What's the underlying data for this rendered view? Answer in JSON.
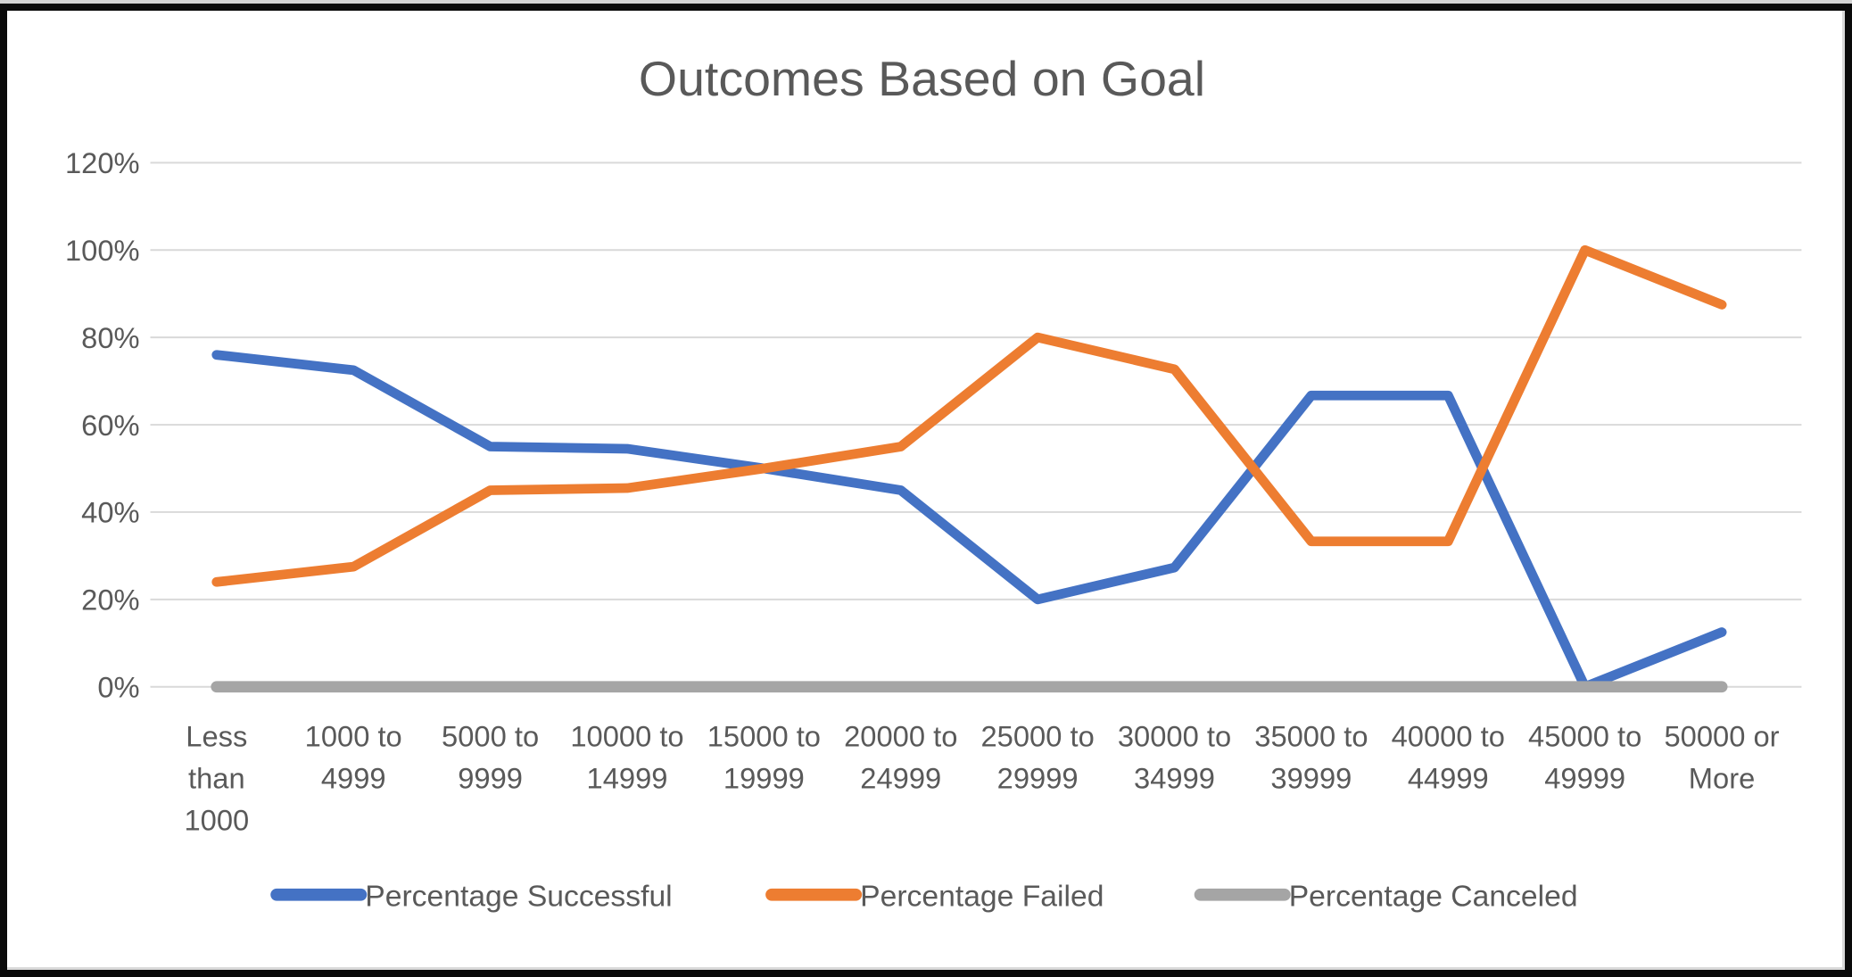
{
  "chart_data": {
    "type": "line",
    "title": "Outcomes Based on Goal",
    "categories": [
      "Less than 1000",
      "1000 to 4999",
      "5000 to 9999",
      "10000 to 14999",
      "15000 to 19999",
      "20000 to 24999",
      "25000 to 29999",
      "30000 to 34999",
      "35000 to 39999",
      "40000 to 44999",
      "45000 to 49999",
      "50000 or More"
    ],
    "category_label_lines": [
      [
        "Less",
        "than",
        "1000"
      ],
      [
        "1000 to",
        "4999"
      ],
      [
        "5000 to",
        "9999"
      ],
      [
        "10000 to",
        "14999"
      ],
      [
        "15000 to",
        "19999"
      ],
      [
        "20000 to",
        "24999"
      ],
      [
        "25000 to",
        "29999"
      ],
      [
        "30000 to",
        "34999"
      ],
      [
        "35000 to",
        "39999"
      ],
      [
        "40000 to",
        "44999"
      ],
      [
        "45000 to",
        "49999"
      ],
      [
        "50000 or",
        "More"
      ]
    ],
    "series": [
      {
        "name": "Percentage Successful",
        "color": "#4472C4",
        "values": [
          76,
          72.5,
          55,
          54.5,
          50,
          45,
          20,
          27.3,
          66.7,
          66.7,
          0,
          12.5
        ]
      },
      {
        "name": "Percentage Failed",
        "color": "#ED7D31",
        "values": [
          24,
          27.5,
          45,
          45.5,
          50,
          55,
          80,
          72.7,
          33.3,
          33.3,
          100,
          87.5
        ]
      },
      {
        "name": "Percentage Canceled",
        "color": "#A5A5A5",
        "values": [
          0,
          0,
          0,
          0,
          0,
          0,
          0,
          0,
          0,
          0,
          0,
          0
        ]
      }
    ],
    "ylim": [
      0,
      120
    ],
    "ytick_step": 20,
    "ytick_labels": [
      "0%",
      "20%",
      "40%",
      "60%",
      "80%",
      "100%",
      "120%"
    ],
    "xlabel": "",
    "ylabel": "",
    "grid": true,
    "legend_position": "bottom",
    "text_color": "#595959",
    "gridline_color": "#D9D9D9",
    "background_color": "#FFFFFF",
    "frame_color": "#000000"
  }
}
